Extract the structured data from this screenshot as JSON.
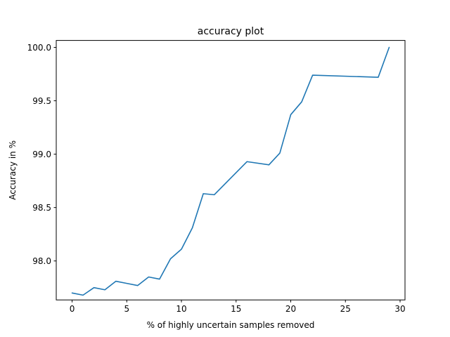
{
  "chart_data": {
    "type": "line",
    "title": "accuracy plot",
    "xlabel": "% of highly uncertain samples removed",
    "ylabel": "Accuracy in %",
    "xlim": [
      -1.45,
      30.45
    ],
    "ylim": [
      97.635,
      100.065
    ],
    "x_ticks": [
      0,
      5,
      10,
      15,
      20,
      25,
      30
    ],
    "x_tick_labels": [
      "0",
      "5",
      "10",
      "15",
      "20",
      "25",
      "30"
    ],
    "y_ticks": [
      98.0,
      98.5,
      99.0,
      99.5,
      100.0
    ],
    "y_tick_labels": [
      "98.0",
      "98.5",
      "99.0",
      "99.5",
      "100.0"
    ],
    "grid": false,
    "series": [
      {
        "color": "#1f77b4",
        "x": [
          0,
          1,
          2,
          3,
          4,
          5,
          6,
          7,
          8,
          9,
          10,
          11,
          12,
          13,
          16,
          18,
          19,
          20,
          21,
          22,
          28,
          29
        ],
        "values": [
          97.7,
          97.68,
          97.75,
          97.73,
          97.81,
          97.79,
          97.77,
          97.85,
          97.83,
          98.02,
          98.11,
          98.31,
          98.63,
          98.62,
          98.93,
          98.9,
          99.01,
          99.37,
          99.49,
          99.74,
          99.72,
          100.0
        ]
      }
    ]
  }
}
